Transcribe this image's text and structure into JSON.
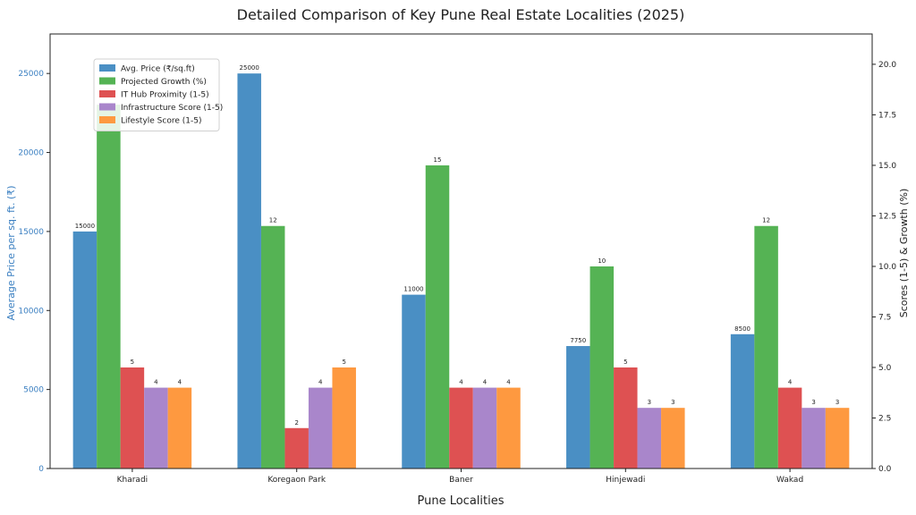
{
  "chart_data": {
    "type": "bar",
    "title": "Detailed Comparison of Key Pune Real Estate Localities (2025)",
    "xlabel": "Pune Localities",
    "ylabel_left": "Average Price per sq. ft. (₹)",
    "ylabel_right": "Scores (1-5) & Growth (%)",
    "categories": [
      "Kharadi",
      "Koregaon Park",
      "Baner",
      "Hinjewadi",
      "Wakad"
    ],
    "ylim_left": [
      0,
      27500
    ],
    "ylim_right": [
      0,
      21.5
    ],
    "yticks_left": [
      "0",
      "5000",
      "10000",
      "15000",
      "20000",
      "25000"
    ],
    "yticks_right": [
      "0.0",
      "2.5",
      "5.0",
      "7.5",
      "10.0",
      "12.5",
      "15.0",
      "17.5",
      "20.0"
    ],
    "legend_position": "upper-left",
    "series": [
      {
        "name": "Avg. Price (₹/sq.ft)",
        "axis": "left",
        "color": "#4a8fc4",
        "values": [
          15000,
          25000,
          11000,
          7750,
          8500
        ],
        "labels": [
          "15000",
          "25000",
          "11000",
          "7750",
          "8500"
        ]
      },
      {
        "name": "Projected Growth (%)",
        "axis": "right",
        "color": "#55b354",
        "values": [
          18,
          12,
          15,
          10,
          12
        ],
        "labels": [
          "",
          "12",
          "15",
          "10",
          "12"
        ]
      },
      {
        "name": "IT Hub Proximity (1-5)",
        "axis": "right",
        "color": "#de5152",
        "values": [
          5,
          2,
          4,
          5,
          4
        ],
        "labels": [
          "5",
          "2",
          "4",
          "5",
          "4"
        ]
      },
      {
        "name": "Infrastructure Score (1-5)",
        "axis": "right",
        "color": "#a986cb",
        "values": [
          4,
          4,
          4,
          3,
          3
        ],
        "labels": [
          "4",
          "4",
          "4",
          "3",
          "3"
        ]
      },
      {
        "name": "Lifestyle Score (1-5)",
        "axis": "right",
        "color": "#fe9940",
        "values": [
          4,
          5,
          4,
          3,
          3
        ],
        "labels": [
          "4",
          "5",
          "4",
          "3",
          "3"
        ]
      }
    ]
  }
}
